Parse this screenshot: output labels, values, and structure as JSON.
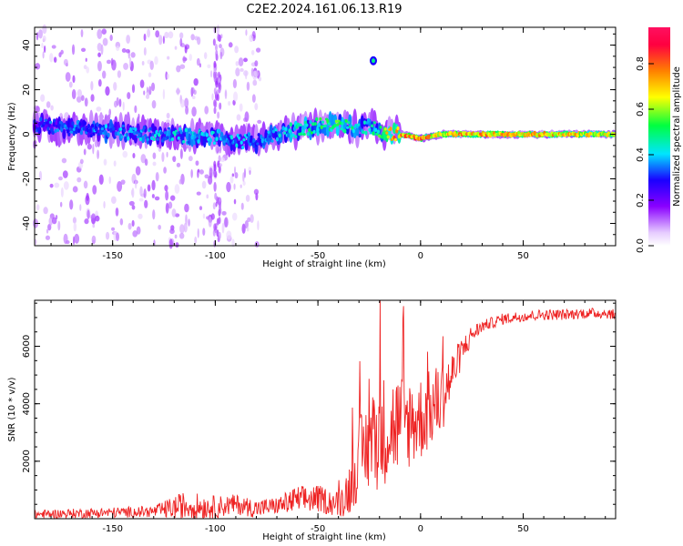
{
  "figure_title": "C2E2.2024.161.06.13.R19",
  "chart_data": [
    {
      "type": "heatmap",
      "xlabel": "Height of straight line (km)",
      "ylabel": "Frequency (Hz)",
      "xlim": [
        -188,
        95
      ],
      "ylim": [
        -50,
        48
      ],
      "x_ticks": [
        -150,
        -100,
        -50,
        0,
        50
      ],
      "y_ticks": [
        -40,
        -20,
        0,
        20,
        40
      ],
      "colorbar": {
        "label": "Normalized spectral amplitude",
        "range": [
          0.0,
          0.96
        ],
        "ticks": [
          "0.0",
          "0.2",
          "0.4",
          "0.6",
          "0.8"
        ],
        "tick_values": [
          0.0,
          0.2,
          0.4,
          0.6,
          0.8
        ],
        "colormap": [
          "#ffffff",
          "#e8d0ff",
          "#8a00ff",
          "#1a00ff",
          "#00e5ff",
          "#00ff40",
          "#ffff00",
          "#ff8000",
          "#ff0040",
          "#ff1060"
        ]
      },
      "ridge": {
        "x": [
          -188,
          -160,
          -130,
          -110,
          -100,
          -90,
          -80,
          -70,
          -60,
          -50,
          -40,
          -35,
          -30,
          -25,
          -20,
          -15,
          -10,
          0,
          10,
          20,
          50,
          95
        ],
        "freq": [
          4,
          2,
          0,
          -1,
          -1,
          -3,
          -3,
          0,
          2,
          4,
          5,
          4,
          2,
          4,
          1,
          0,
          0,
          -2,
          0,
          0,
          0,
          0
        ],
        "amplitude": [
          0.35,
          0.4,
          0.45,
          0.45,
          0.45,
          0.45,
          0.4,
          0.45,
          0.5,
          0.55,
          0.6,
          0.55,
          0.45,
          0.5,
          0.6,
          0.8,
          0.85,
          0.9,
          0.75,
          0.85,
          0.8,
          0.75
        ]
      },
      "isolated_blob": {
        "x": -23,
        "freq": 33
      }
    },
    {
      "type": "line",
      "xlabel": "Height of straight line (km)",
      "ylabel": "SNR (10 * v/v)",
      "xlim": [
        -188,
        95
      ],
      "ylim": [
        0,
        7600
      ],
      "x_ticks": [
        -150,
        -100,
        -50,
        0,
        50
      ],
      "y_ticks": [
        2000,
        4000,
        6000
      ],
      "series": [
        {
          "color": "#ee2222",
          "trend": {
            "x": [
              -188,
              -130,
              -115,
              -100,
              -90,
              -80,
              -70,
              -60,
              -50,
              -40,
              -35,
              -30,
              -25,
              -20,
              -15,
              -10,
              -5,
              0,
              5,
              10,
              15,
              20,
              25,
              30,
              40,
              50,
              60,
              70,
              80,
              90,
              95
            ],
            "y": [
              150,
              250,
              450,
              400,
              500,
              350,
              450,
              650,
              700,
              500,
              1000,
              2100,
              2600,
              3000,
              3200,
              3300,
              3400,
              3500,
              3800,
              4200,
              4900,
              5800,
              6400,
              6700,
              6950,
              7050,
              7100,
              7100,
              7150,
              7150,
              7100
            ]
          },
          "noise_amplitude": {
            "x": [
              -188,
              -130,
              -115,
              -100,
              -90,
              -70,
              -60,
              -40,
              -35,
              -30,
              -20,
              -10,
              0,
              10,
              15,
              20,
              30,
              95
            ],
            "y": [
              150,
              200,
              500,
              400,
              350,
              300,
              500,
              450,
              900,
              1400,
              2000,
              1800,
              1500,
              1300,
              900,
              500,
              200,
              180
            ]
          }
        }
      ]
    }
  ]
}
